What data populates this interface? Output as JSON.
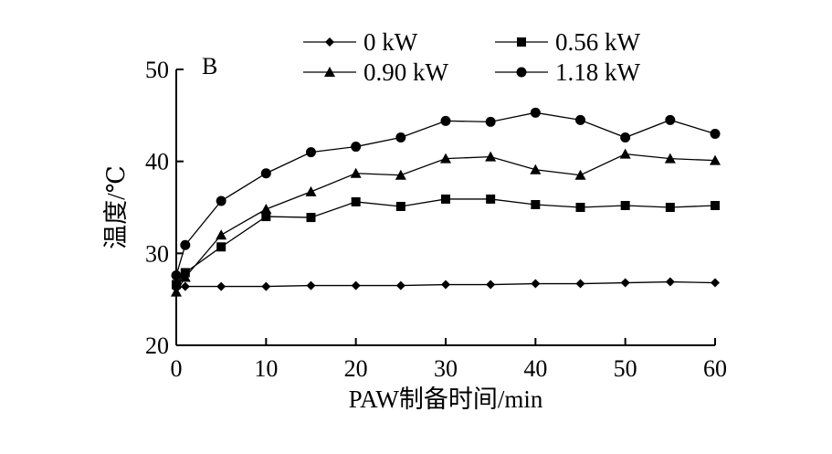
{
  "chart_data": {
    "type": "line",
    "panel_label": "B",
    "xlabel": "PAW制备时间/min",
    "ylabel": "温度/℃",
    "xlim": [
      0,
      60
    ],
    "ylim": [
      20,
      50
    ],
    "x_ticks": [
      0,
      10,
      20,
      30,
      40,
      50,
      60
    ],
    "y_ticks": [
      20,
      30,
      40,
      50
    ],
    "grid": false,
    "legend_position": "top",
    "series": [
      {
        "name": "0 kW",
        "marker": "diamond",
        "x": [
          0,
          1,
          5,
          10,
          15,
          20,
          25,
          30,
          35,
          40,
          45,
          50,
          55,
          60
        ],
        "y": [
          26.2,
          26.4,
          26.4,
          26.4,
          26.5,
          26.5,
          26.5,
          26.6,
          26.6,
          26.7,
          26.7,
          26.8,
          26.9,
          26.8
        ]
      },
      {
        "name": "0.56 kW",
        "marker": "square",
        "x": [
          0,
          1,
          5,
          10,
          15,
          20,
          25,
          30,
          35,
          40,
          45,
          50,
          55,
          60
        ],
        "y": [
          26.6,
          27.9,
          30.7,
          34.0,
          33.9,
          35.6,
          35.1,
          35.9,
          35.9,
          35.3,
          35.0,
          35.2,
          35.0,
          35.2
        ]
      },
      {
        "name": "0.90 kW",
        "marker": "triangle",
        "x": [
          0,
          1,
          5,
          10,
          15,
          20,
          25,
          30,
          35,
          40,
          45,
          50,
          55,
          60
        ],
        "y": [
          25.8,
          27.4,
          32.0,
          34.8,
          36.7,
          38.7,
          38.5,
          40.3,
          40.5,
          39.1,
          38.5,
          40.8,
          40.3,
          40.1
        ]
      },
      {
        "name": "1.18 kW",
        "marker": "circle",
        "x": [
          0,
          1,
          5,
          10,
          15,
          20,
          25,
          30,
          35,
          40,
          45,
          50,
          55,
          60
        ],
        "y": [
          27.6,
          30.9,
          35.7,
          38.7,
          41.0,
          41.6,
          42.6,
          44.4,
          44.3,
          45.3,
          44.5,
          42.6,
          44.5,
          43.0
        ]
      }
    ]
  }
}
